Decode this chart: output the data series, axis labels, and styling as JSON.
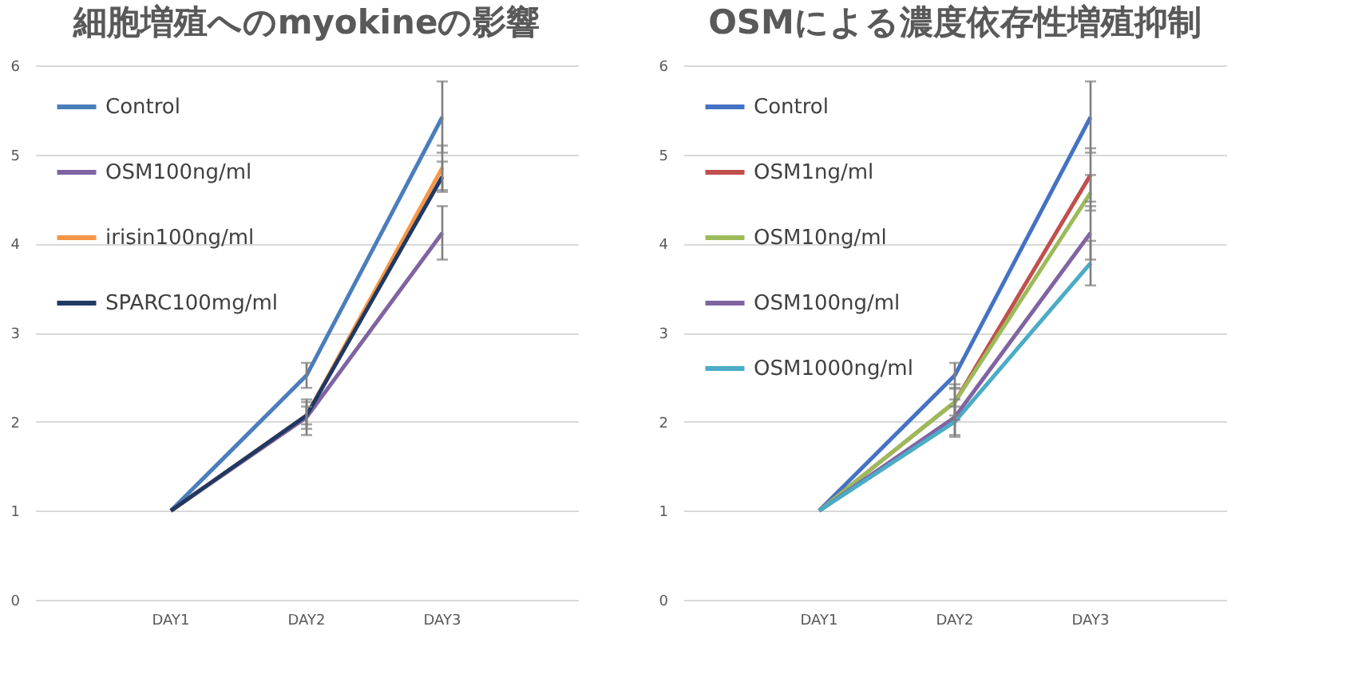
{
  "chart_data": [
    {
      "type": "line",
      "title": "細胞増殖へのmyokineの影響",
      "categories": [
        "DAY1",
        "DAY2",
        "DAY3"
      ],
      "ylim": [
        0,
        6
      ],
      "yticks": [
        0,
        1,
        2,
        3,
        4,
        5,
        6
      ],
      "grid": "y",
      "legend": "top left",
      "series": [
        {
          "name": "Control",
          "color": "#4a7ebb",
          "values": [
            1,
            2.52,
            5.42
          ],
          "errors": [
            null,
            0.14,
            0.4
          ]
        },
        {
          "name": "OSM100ng/ml",
          "color": "#8064a2",
          "values": [
            1,
            2.05,
            4.12
          ],
          "errors": [
            null,
            0.2,
            0.3
          ]
        },
        {
          "name": "irisin100ng/ml",
          "color": "#f79646",
          "values": [
            1,
            2.07,
            4.85
          ],
          "errors": [
            null,
            0.15,
            0.25
          ]
        },
        {
          "name": "SPARC100mg/ml",
          "color": "#1f3864",
          "values": [
            1,
            2.07,
            4.75
          ],
          "errors": [
            null,
            0.1,
            0.17
          ]
        }
      ]
    },
    {
      "type": "line",
      "title": "OSMによる濃度依存性増殖抑制",
      "categories": [
        "DAY1",
        "DAY2",
        "DAY3"
      ],
      "ylim": [
        0,
        6
      ],
      "yticks": [
        0,
        1,
        2,
        3,
        4,
        5,
        6
      ],
      "grid": "y",
      "legend": "top left",
      "series": [
        {
          "name": "Control",
          "color": "#4472c4",
          "values": [
            1,
            2.52,
            5.42
          ],
          "errors": [
            null,
            0.14,
            0.4
          ]
        },
        {
          "name": "OSM1ng/ml",
          "color": "#c0504d",
          "values": [
            1,
            2.22,
            4.77
          ],
          "errors": [
            null,
            0.2,
            0.3
          ]
        },
        {
          "name": "OSM10ng/ml",
          "color": "#9bbb59",
          "values": [
            1,
            2.22,
            4.57
          ],
          "errors": [
            null,
            0.15,
            0.2
          ]
        },
        {
          "name": "OSM100ng/ml",
          "color": "#8064a2",
          "values": [
            1,
            2.05,
            4.12
          ],
          "errors": [
            null,
            0.2,
            0.3
          ]
        },
        {
          "name": "OSM1000ng/ml",
          "color": "#4bacc6",
          "values": [
            1,
            2.0,
            3.78
          ],
          "errors": [
            null,
            0.17,
            0.25
          ]
        }
      ]
    }
  ]
}
